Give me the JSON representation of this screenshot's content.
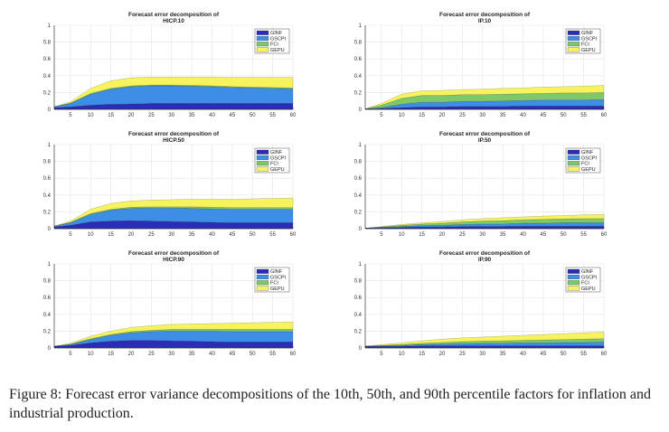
{
  "colors": {
    "GINF": "#2b2db8",
    "GSCPI": "#3d8fe6",
    "FCI": "#7ec86a",
    "GEPU": "#f6f35e"
  },
  "chart_data": [
    {
      "type": "area",
      "title": "Forecast error decomposition of",
      "subtitle": "HICP.10",
      "x_ticks": [
        5,
        10,
        15,
        20,
        25,
        30,
        35,
        40,
        45,
        50,
        55,
        60
      ],
      "y_ticks": [
        "0",
        "0.2",
        "0.4",
        "0.6",
        "0.8",
        "1"
      ],
      "xlim": [
        1,
        60
      ],
      "ylim": [
        0,
        1
      ],
      "legend": "top-right",
      "x": [
        1,
        5,
        10,
        15,
        20,
        25,
        30,
        35,
        40,
        45,
        50,
        55,
        60
      ],
      "series": [
        {
          "name": "GINF",
          "values": [
            0.02,
            0.03,
            0.05,
            0.06,
            0.065,
            0.07,
            0.07,
            0.07,
            0.07,
            0.07,
            0.07,
            0.07,
            0.07
          ]
        },
        {
          "name": "GSCPI",
          "values": [
            0.01,
            0.04,
            0.13,
            0.18,
            0.205,
            0.21,
            0.21,
            0.205,
            0.2,
            0.19,
            0.185,
            0.18,
            0.175
          ]
        },
        {
          "name": "FCI",
          "values": [
            0.0,
            0.005,
            0.01,
            0.01,
            0.01,
            0.01,
            0.01,
            0.01,
            0.01,
            0.01,
            0.01,
            0.01,
            0.01
          ]
        },
        {
          "name": "GEPU",
          "values": [
            0.0,
            0.015,
            0.06,
            0.09,
            0.095,
            0.095,
            0.095,
            0.1,
            0.105,
            0.11,
            0.115,
            0.12,
            0.125
          ]
        }
      ]
    },
    {
      "type": "area",
      "title": "Forecast error decomposition of",
      "subtitle": "IP.10",
      "x_ticks": [
        5,
        10,
        15,
        20,
        25,
        30,
        35,
        40,
        45,
        50,
        55,
        60
      ],
      "y_ticks": [
        "0",
        "0.2",
        "0.4",
        "0.6",
        "0.8",
        "1"
      ],
      "xlim": [
        1,
        60
      ],
      "ylim": [
        0,
        1
      ],
      "legend": "top-right",
      "x": [
        1,
        5,
        10,
        15,
        20,
        25,
        30,
        35,
        40,
        45,
        50,
        55,
        60
      ],
      "series": [
        {
          "name": "GINF",
          "values": [
            0.005,
            0.01,
            0.02,
            0.03,
            0.03,
            0.035,
            0.035,
            0.035,
            0.04,
            0.04,
            0.04,
            0.04,
            0.04
          ]
        },
        {
          "name": "GSCPI",
          "values": [
            0.0,
            0.01,
            0.04,
            0.055,
            0.055,
            0.06,
            0.06,
            0.065,
            0.065,
            0.07,
            0.07,
            0.07,
            0.075
          ]
        },
        {
          "name": "FCI",
          "values": [
            0.0,
            0.03,
            0.07,
            0.08,
            0.08,
            0.08,
            0.08,
            0.08,
            0.08,
            0.08,
            0.085,
            0.085,
            0.085
          ]
        },
        {
          "name": "GEPU",
          "values": [
            0.0,
            0.02,
            0.05,
            0.055,
            0.06,
            0.06,
            0.065,
            0.07,
            0.07,
            0.075,
            0.075,
            0.08,
            0.085
          ]
        }
      ]
    },
    {
      "type": "area",
      "title": "Forecast error decomposition of",
      "subtitle": "HICP.50",
      "x_ticks": [
        5,
        10,
        15,
        20,
        25,
        30,
        35,
        40,
        45,
        50,
        55,
        60
      ],
      "y_ticks": [
        "0",
        "0.2",
        "0.4",
        "0.6",
        "0.8",
        "1"
      ],
      "xlim": [
        1,
        60
      ],
      "ylim": [
        0,
        1
      ],
      "legend": "top-right",
      "x": [
        1,
        5,
        10,
        15,
        20,
        25,
        30,
        35,
        40,
        45,
        50,
        55,
        60
      ],
      "series": [
        {
          "name": "GINF",
          "values": [
            0.02,
            0.04,
            0.08,
            0.09,
            0.095,
            0.09,
            0.085,
            0.08,
            0.075,
            0.07,
            0.07,
            0.07,
            0.07
          ]
        },
        {
          "name": "GSCPI",
          "values": [
            0.01,
            0.03,
            0.09,
            0.13,
            0.145,
            0.155,
            0.16,
            0.16,
            0.16,
            0.16,
            0.16,
            0.16,
            0.16
          ]
        },
        {
          "name": "FCI",
          "values": [
            0.0,
            0.005,
            0.01,
            0.01,
            0.015,
            0.015,
            0.015,
            0.02,
            0.02,
            0.02,
            0.02,
            0.02,
            0.02
          ]
        },
        {
          "name": "GEPU",
          "values": [
            0.0,
            0.015,
            0.05,
            0.07,
            0.075,
            0.08,
            0.085,
            0.09,
            0.095,
            0.1,
            0.105,
            0.11,
            0.115
          ]
        }
      ]
    },
    {
      "type": "area",
      "title": "Forecast error decomposition of",
      "subtitle": "IP.50",
      "x_ticks": [
        5,
        10,
        15,
        20,
        25,
        30,
        35,
        40,
        45,
        50,
        55,
        60
      ],
      "y_ticks": [
        "0",
        "0.2",
        "0.4",
        "0.6",
        "0.8",
        "1"
      ],
      "xlim": [
        1,
        60
      ],
      "ylim": [
        0,
        1
      ],
      "legend": "top-right",
      "x": [
        1,
        5,
        10,
        15,
        20,
        25,
        30,
        35,
        40,
        45,
        50,
        55,
        60
      ],
      "series": [
        {
          "name": "GINF",
          "values": [
            0.005,
            0.01,
            0.015,
            0.02,
            0.02,
            0.025,
            0.025,
            0.025,
            0.03,
            0.03,
            0.03,
            0.03,
            0.03
          ]
        },
        {
          "name": "GSCPI",
          "values": [
            0.0,
            0.005,
            0.01,
            0.015,
            0.02,
            0.025,
            0.03,
            0.03,
            0.035,
            0.035,
            0.04,
            0.04,
            0.04
          ]
        },
        {
          "name": "FCI",
          "values": [
            0.0,
            0.005,
            0.015,
            0.02,
            0.025,
            0.03,
            0.035,
            0.04,
            0.04,
            0.045,
            0.045,
            0.05,
            0.05
          ]
        },
        {
          "name": "GEPU",
          "values": [
            0.0,
            0.005,
            0.01,
            0.015,
            0.02,
            0.025,
            0.03,
            0.035,
            0.035,
            0.04,
            0.04,
            0.045,
            0.05
          ]
        }
      ]
    },
    {
      "type": "area",
      "title": "Forecast error decomposition of",
      "subtitle": "HICP.90",
      "x_ticks": [
        5,
        10,
        15,
        20,
        25,
        30,
        35,
        40,
        45,
        50,
        55,
        60
      ],
      "y_ticks": [
        "0",
        "0.2",
        "0.4",
        "0.6",
        "0.8",
        "1"
      ],
      "xlim": [
        1,
        60
      ],
      "ylim": [
        0,
        1
      ],
      "legend": "top-right",
      "x": [
        1,
        5,
        10,
        15,
        20,
        25,
        30,
        35,
        40,
        45,
        50,
        55,
        60
      ],
      "series": [
        {
          "name": "GINF",
          "values": [
            0.02,
            0.03,
            0.06,
            0.08,
            0.09,
            0.09,
            0.085,
            0.08,
            0.075,
            0.07,
            0.07,
            0.07,
            0.07
          ]
        },
        {
          "name": "GSCPI",
          "values": [
            0.0,
            0.01,
            0.04,
            0.07,
            0.09,
            0.105,
            0.115,
            0.12,
            0.125,
            0.125,
            0.125,
            0.125,
            0.125
          ]
        },
        {
          "name": "FCI",
          "values": [
            0.0,
            0.005,
            0.01,
            0.01,
            0.015,
            0.015,
            0.02,
            0.02,
            0.02,
            0.025,
            0.025,
            0.025,
            0.025
          ]
        },
        {
          "name": "GEPU",
          "values": [
            0.0,
            0.01,
            0.03,
            0.04,
            0.05,
            0.055,
            0.06,
            0.065,
            0.07,
            0.075,
            0.08,
            0.085,
            0.09
          ]
        }
      ]
    },
    {
      "type": "area",
      "title": "Forecast error decomposition of",
      "subtitle": "IP.90",
      "x_ticks": [
        5,
        10,
        15,
        20,
        25,
        30,
        35,
        40,
        45,
        50,
        55,
        60
      ],
      "y_ticks": [
        "0",
        "0.2",
        "0.4",
        "0.6",
        "0.8",
        "1"
      ],
      "xlim": [
        1,
        60
      ],
      "ylim": [
        0,
        1
      ],
      "legend": "top-right",
      "x": [
        1,
        5,
        10,
        15,
        20,
        25,
        30,
        35,
        40,
        45,
        50,
        55,
        60
      ],
      "series": [
        {
          "name": "GINF",
          "values": [
            0.02,
            0.02,
            0.02,
            0.025,
            0.025,
            0.025,
            0.025,
            0.025,
            0.025,
            0.025,
            0.025,
            0.025,
            0.025
          ]
        },
        {
          "name": "GSCPI",
          "values": [
            0.0,
            0.005,
            0.01,
            0.015,
            0.02,
            0.025,
            0.03,
            0.03,
            0.035,
            0.035,
            0.04,
            0.04,
            0.045
          ]
        },
        {
          "name": "FCI",
          "values": [
            0.0,
            0.005,
            0.01,
            0.015,
            0.02,
            0.025,
            0.025,
            0.03,
            0.03,
            0.035,
            0.035,
            0.04,
            0.04
          ]
        },
        {
          "name": "GEPU",
          "values": [
            0.0,
            0.01,
            0.02,
            0.03,
            0.04,
            0.045,
            0.05,
            0.055,
            0.06,
            0.065,
            0.07,
            0.075,
            0.08
          ]
        }
      ]
    }
  ],
  "caption": "Figure 8: Forecast error variance decompositions of the 10th, 50th, and 90th percentile factors for inflation and industrial production."
}
